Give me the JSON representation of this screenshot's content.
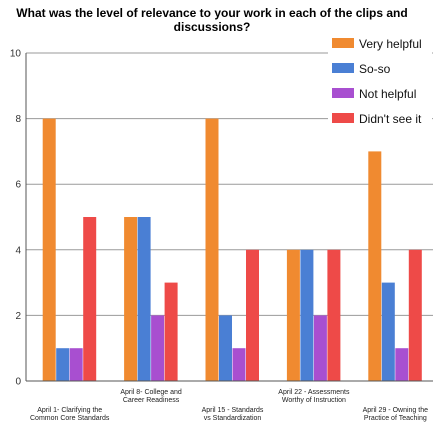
{
  "chart_data": {
    "type": "bar",
    "title": "What was the level of relevance to your work in each of the clips and discussions?",
    "title_lines": [
      "What was the level of relevance to your work in each of the clips and",
      "discussions?"
    ],
    "xlabel": "",
    "ylabel": "",
    "ylim": [
      0,
      10
    ],
    "yticks": [
      0,
      2,
      4,
      6,
      8,
      10
    ],
    "grid": true,
    "legend_position": "top-right",
    "categories": [
      "April 1- Clarifying the Common Core Standards",
      "April 8- College and Career Readiness",
      "April 15 - Standards vs Standardization",
      "April 22 - Assessments Worthy of Instruction",
      "April 29 - Owning the Practice of Teaching"
    ],
    "category_label_lines": [
      [
        "April 1- Clarifying the",
        "Common Core Standards"
      ],
      [
        "April 8- College and",
        "Career Readiness"
      ],
      [
        "April 15 - Standards",
        "vs Standardization"
      ],
      [
        "April 22 - Assessments",
        "Worthy of Instruction"
      ],
      [
        "April 29 - Owning the",
        "Practice of Teaching"
      ]
    ],
    "series": [
      {
        "name": "Very helpful",
        "color": "#f08a30",
        "values": [
          8,
          5,
          8,
          4,
          7
        ]
      },
      {
        "name": "So-so",
        "color": "#4a7fd4",
        "values": [
          1,
          5,
          2,
          4,
          3
        ]
      },
      {
        "name": "Not helpful",
        "color": "#a84fd0",
        "values": [
          1,
          2,
          1,
          2,
          1
        ]
      },
      {
        "name": "Didn't see it",
        "color": "#ee4a48",
        "values": [
          5,
          3,
          4,
          4,
          4
        ]
      }
    ]
  }
}
